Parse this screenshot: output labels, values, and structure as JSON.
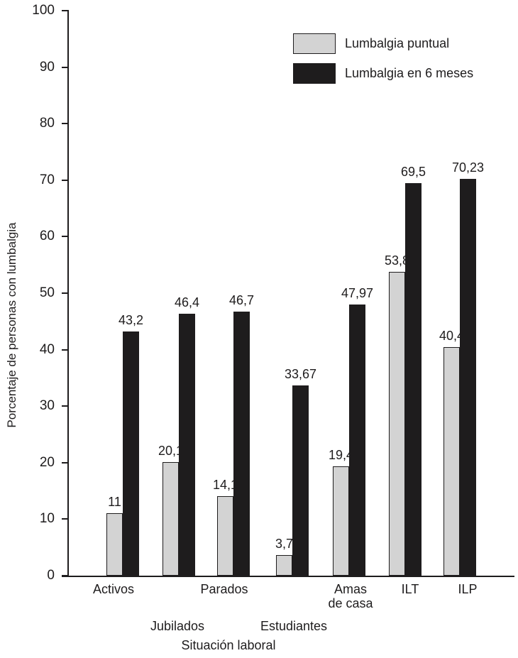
{
  "figure": {
    "background": "#ffffff",
    "text_color": "#1e1c1d"
  },
  "chart_data": {
    "type": "bar",
    "title": "",
    "xlabel": "Situación laboral",
    "ylabel": "Porcentaje de personas con lumbalgia",
    "ylim": [
      0,
      100
    ],
    "yticks": [
      0,
      10,
      20,
      30,
      40,
      50,
      60,
      70,
      80,
      90,
      100
    ],
    "grid": false,
    "legend_position": "top-right-inside",
    "categories": [
      {
        "label": "Activos",
        "row": 1
      },
      {
        "label": "Jubilados",
        "row": 2
      },
      {
        "label": "Parados",
        "row": 1
      },
      {
        "label": "Estudiantes",
        "row": 2
      },
      {
        "label": "Amas\nde casa",
        "row": 1
      },
      {
        "label": "ILT",
        "row": 1
      },
      {
        "label": "ILP",
        "row": 1
      }
    ],
    "series": [
      {
        "name": "Lumbalgia puntual",
        "color": "#d3d3d3",
        "border_color": "#1e1c1d",
        "values": [
          11,
          20.1,
          14.1,
          3.7,
          19.4,
          53.8,
          40.4
        ],
        "value_labels": [
          "11",
          "20,1",
          "14,1",
          "3,7",
          "19,4",
          "53,8",
          "40,4"
        ]
      },
      {
        "name": "Lumbalgia en 6 meses",
        "color": "#1e1c1d",
        "border_color": "#1e1c1d",
        "values": [
          43.2,
          46.4,
          46.7,
          33.67,
          47.97,
          69.5,
          70.23
        ],
        "value_labels": [
          "43,2",
          "46,4",
          "46,7",
          "33,67",
          "47,97",
          "69,5",
          "70,23"
        ]
      }
    ]
  }
}
